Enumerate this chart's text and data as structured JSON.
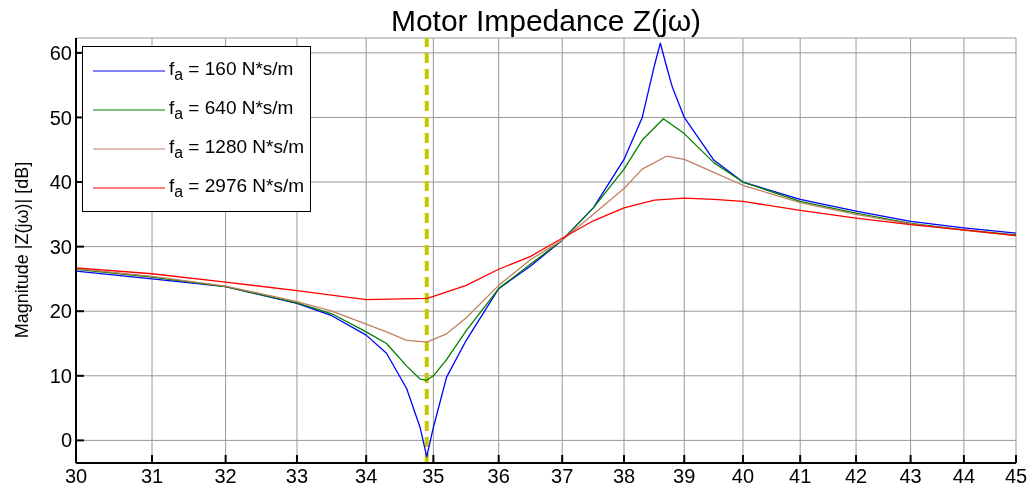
{
  "chart_data": {
    "type": "line",
    "title": "Motor Impedance Z(jω)",
    "ylabel": "Magnitude |Z(jω)| [dB]",
    "log": "x",
    "xlim": [
      30,
      45
    ],
    "xticks": [
      30,
      31,
      32,
      33,
      34,
      35,
      36,
      37,
      38,
      39,
      40,
      41,
      42,
      43,
      44,
      45
    ],
    "ylim": [
      -3.5,
      62.3
    ],
    "yticks": [
      0,
      10,
      20,
      30,
      40,
      50,
      60
    ],
    "grid": true,
    "legend": "top left",
    "line_style": "solid",
    "marker": "none",
    "ref_lines": [
      {
        "axis": "x",
        "value": 34.9,
        "color": "#c8c800",
        "line_style": "dashed"
      }
    ],
    "series": [
      {
        "name": "f$_{a}$ = 160 N*s/m",
        "color": "#0000ff",
        "x": [
          30,
          31,
          32,
          33,
          33.5,
          34,
          34.3,
          34.6,
          34.8,
          34.9,
          35,
          35.2,
          35.5,
          36,
          36.5,
          37,
          37.5,
          38,
          38.3,
          38.5,
          38.6,
          38.7,
          38.8,
          39,
          39.5,
          40,
          41,
          42,
          43,
          44,
          45
        ],
        "values": [
          26.2,
          25.0,
          23.8,
          21.2,
          19.3,
          16.3,
          13.5,
          8,
          2,
          -2.5,
          2,
          9.8,
          15.5,
          23.5,
          27,
          31,
          36,
          43.5,
          50,
          58,
          61.5,
          58,
          54.7,
          50,
          43.4,
          40,
          37.3,
          35.5,
          33.9,
          32.9,
          32.1
        ]
      },
      {
        "name": "f$_{a}$ = 640 N*s/m",
        "color": "#008000",
        "x": [
          30,
          31,
          32,
          33,
          33.5,
          34,
          34.3,
          34.6,
          34.8,
          34.9,
          35,
          35.2,
          35.5,
          36,
          36.5,
          37,
          37.5,
          38,
          38.3,
          38.65,
          39,
          39.5,
          40,
          41,
          42,
          43,
          44,
          45
        ],
        "values": [
          26.5,
          25.3,
          23.8,
          21.3,
          19.6,
          16.8,
          15,
          11.5,
          9.5,
          9.3,
          10,
          12.5,
          17,
          23.5,
          27.3,
          31,
          36,
          42,
          46.5,
          49.8,
          47.5,
          43,
          40,
          37,
          35.2,
          33.6,
          32.6,
          31.8
        ]
      },
      {
        "name": "f$_{a}$ = 1280 N*s/m",
        "color": "#c08060",
        "x": [
          30,
          31,
          32,
          33,
          33.5,
          34,
          34.3,
          34.6,
          34.9,
          35.2,
          35.5,
          36,
          36.5,
          37,
          37.5,
          38,
          38.3,
          38.7,
          39,
          39.5,
          40,
          41,
          42,
          43,
          44,
          45
        ],
        "values": [
          26.6,
          25.4,
          23.9,
          21.5,
          20,
          18,
          16.8,
          15.5,
          15.2,
          16.5,
          19,
          24,
          28,
          31,
          35,
          39,
          42,
          44,
          43.5,
          41.5,
          39.5,
          36.8,
          35,
          33.5,
          32.5,
          31.7
        ]
      },
      {
        "name": "f$_{a}$ = 2976 N*s/m",
        "color": "#ff0000",
        "x": [
          30,
          31,
          32,
          33,
          34,
          34.9,
          35,
          35.5,
          36,
          36.5,
          37,
          37.5,
          38,
          38.5,
          39,
          39.5,
          40,
          41,
          42,
          43,
          44,
          45
        ],
        "values": [
          26.7,
          25.8,
          24.5,
          23.2,
          21.8,
          22,
          22.3,
          24,
          26.5,
          28.5,
          31.3,
          34,
          36,
          37.2,
          37.5,
          37.3,
          37,
          35.6,
          34.4,
          33.4,
          32.6,
          31.7
        ]
      }
    ]
  }
}
